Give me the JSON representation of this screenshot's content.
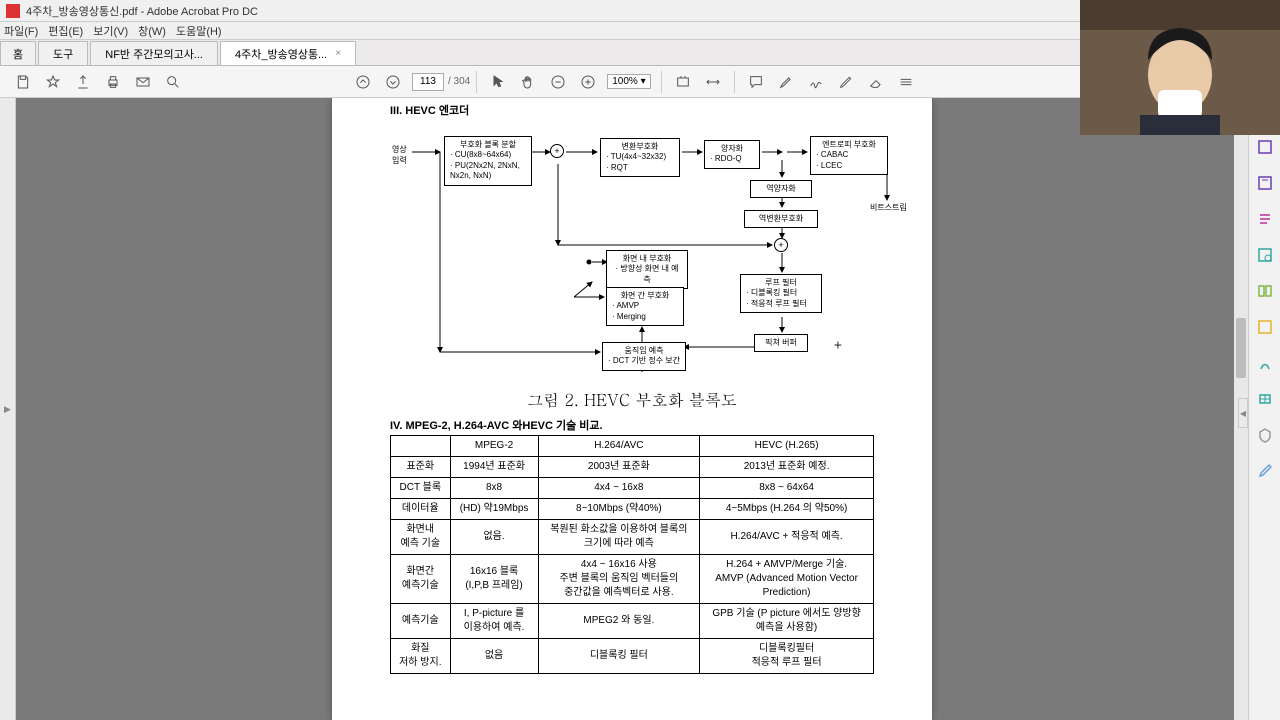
{
  "window": {
    "title": "4주차_방송영상통신.pdf - Adobe Acrobat Pro DC"
  },
  "menu": {
    "file": "파일(F)",
    "edit": "편집(E)",
    "view": "보기(V)",
    "window": "창(W)",
    "help": "도움말(H)"
  },
  "tabs": {
    "home": "홈",
    "tools": "도구",
    "t1": "NF반 주간모의고사...",
    "t2": "4주차_방송영상통...",
    "close": "×"
  },
  "toolbar": {
    "page_current": "113",
    "page_total": "/ 304",
    "zoom": "100%"
  },
  "doc": {
    "sec3_title": "III. HEVC 엔코더",
    "input_label": "영상\n입력",
    "box_coding": {
      "title": "부호화 블록 분할",
      "l1": "· CU(8x8~64x64)",
      "l2": "· PU(2Nx2N, 2NxN,",
      "l3": "  Nx2n, NxN)"
    },
    "box_transform": {
      "title": "변환부호화",
      "l1": "· TU(4x4~32x32)",
      "l2": "· RQT"
    },
    "box_quant": {
      "title": "양자화",
      "l1": "· RDO-Q"
    },
    "box_entropy": {
      "title": "엔트로피 부호화",
      "l1": "· CABAC",
      "l2": "· LCEC"
    },
    "box_dequant": "역양자화",
    "box_invtrans": "역변환부호화",
    "box_loop": {
      "title": "루프 필터",
      "l1": "· 디블록킹 필터",
      "l2": "· 적응적 루프 필터"
    },
    "box_picbuf": "픽쳐 버퍼",
    "box_intra": {
      "title": "화면 내 부호화",
      "l1": "· 방향성 화면 내 예측"
    },
    "box_inter": {
      "title": "화면 간 부호화",
      "l1": "· AMVP",
      "l2": "· Merging"
    },
    "box_motion": {
      "title": "움직임 예측",
      "l1": "· DCT 기반 정수 보간"
    },
    "bitstream": "비트스트림",
    "fig_caption": "그림 2. HEVC 부호화 블록도",
    "sec4_title": "IV. MPEG-2, H.264-AVC 와HEVC 기술 비교.",
    "table": {
      "headers": [
        "",
        "MPEG-2",
        "H.264/AVC",
        "HEVC (H.265)"
      ],
      "rows": [
        [
          "표준화",
          "1994년 표준화",
          "2003년 표준화",
          "2013년 표준화 예정."
        ],
        [
          "DCT 블록",
          "8x8",
          "4x4 ~ 16x8",
          "8x8 ~ 64x64"
        ],
        [
          "데이터율",
          "(HD) 약19Mbps",
          "8~10Mbps (약40%)",
          "4~5Mbps (H.264 의 약50%)"
        ],
        [
          "화면내\n예측 기술",
          "없음.",
          "복원된 화소값을 이용하여 블록의\n크기에 따라 예측",
          "H.264/AVC + 적응적 예측."
        ],
        [
          "화면간\n예측기술",
          "16x16 블록\n(I,P,B 프레임)",
          "4x4 ~ 16x16 사용\n주변 블록의 움직임 벡터들의\n중간값을 예측벡터로 사용.",
          "H.264 + AMVP/Merge 기술.\nAMVP (Advanced Motion Vector\nPrediction)"
        ],
        [
          "예측기술",
          "I, P-picture 를\n이용하여 예측.",
          "MPEG2 와 동일.",
          "GPB 기술 (P picture 에서도 양방향\n예측을 사용함)"
        ],
        [
          "화질\n저하 방지.",
          "없음",
          "디블록킹 필터",
          "디블록킹필터\n적응적 루프 필터"
        ]
      ]
    }
  },
  "colors": {
    "rail_icons": [
      "#6a3eb5",
      "#6a3eb5",
      "#d15bb0",
      "#2fa6a0",
      "#7fb846",
      "#e6b42d",
      "#2fa6a0",
      "#5aa0e0",
      "#999999",
      "#6aa0d8"
    ]
  }
}
